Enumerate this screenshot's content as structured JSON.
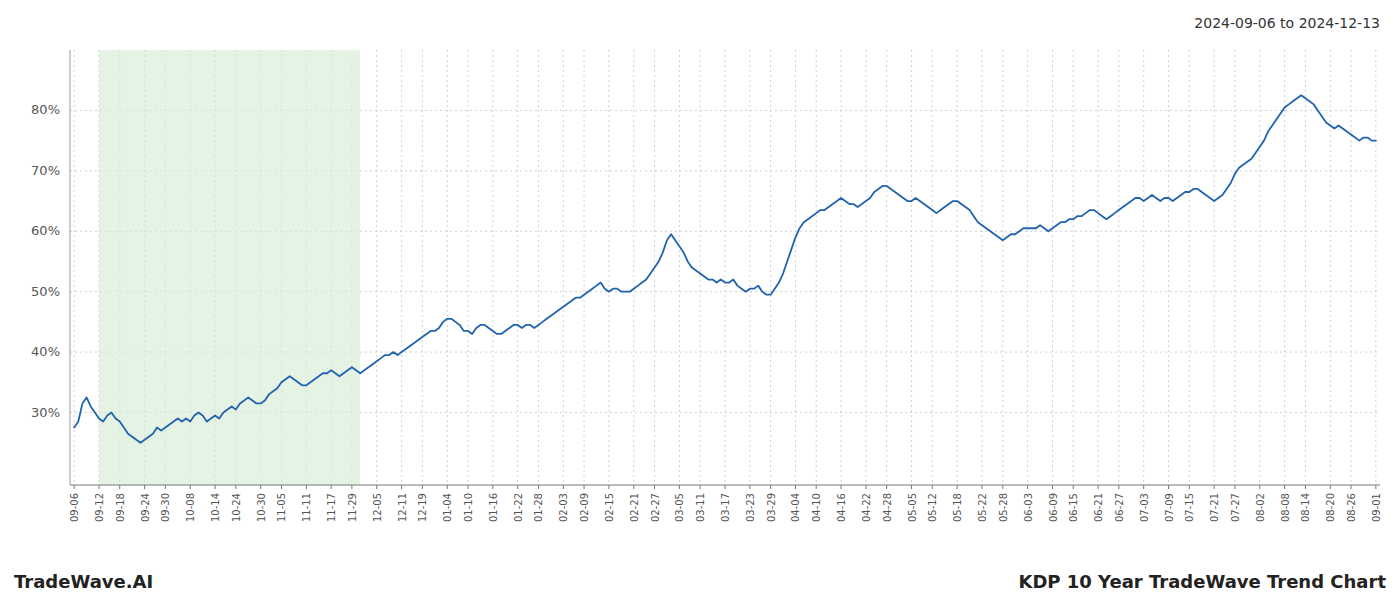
{
  "chart_data": {
    "type": "line",
    "title": "KDP 10 Year TradeWave Trend Chart",
    "subtitle": "2024-09-06 to 2024-12-13",
    "annotations": [
      {
        "text": "TradeWave.AI"
      }
    ],
    "color": "#2163ae",
    "grid": true,
    "ylim": [
      18,
      90
    ],
    "yticks": [
      {
        "value": 30,
        "label": "30%"
      },
      {
        "value": 40,
        "label": "40%"
      },
      {
        "value": 50,
        "label": "50%"
      },
      {
        "value": 60,
        "label": "60%"
      },
      {
        "value": 70,
        "label": "70%"
      },
      {
        "value": 80,
        "label": "80%"
      }
    ],
    "shaded_region": {
      "from": 6,
      "to": 69,
      "color": "#d6ecd6"
    },
    "categories": [
      "09-06",
      null,
      null,
      null,
      null,
      null,
      "09-12",
      null,
      null,
      null,
      null,
      "09-18",
      null,
      null,
      null,
      null,
      null,
      "09-24",
      null,
      null,
      null,
      null,
      "09-30",
      null,
      null,
      null,
      null,
      null,
      "10-08",
      null,
      null,
      null,
      null,
      null,
      "10-14",
      null,
      null,
      null,
      null,
      "10-24",
      null,
      null,
      null,
      null,
      null,
      "10-30",
      null,
      null,
      null,
      null,
      "11-05",
      null,
      null,
      null,
      null,
      null,
      "11-11",
      null,
      null,
      null,
      null,
      null,
      "11-17",
      null,
      null,
      null,
      null,
      "11-29",
      null,
      null,
      null,
      null,
      null,
      "12-05",
      null,
      null,
      null,
      null,
      null,
      "12-11",
      null,
      null,
      null,
      null,
      "12-19",
      null,
      null,
      null,
      null,
      null,
      "01-04",
      null,
      null,
      null,
      null,
      "01-10",
      null,
      null,
      null,
      null,
      null,
      "01-16",
      null,
      null,
      null,
      null,
      null,
      "01-22",
      null,
      null,
      null,
      null,
      "01-28",
      null,
      null,
      null,
      null,
      null,
      "02-03",
      null,
      null,
      null,
      null,
      "02-09",
      null,
      null,
      null,
      null,
      null,
      "02-15",
      null,
      null,
      null,
      null,
      null,
      "02-21",
      null,
      null,
      null,
      null,
      "02-27",
      null,
      null,
      null,
      null,
      null,
      "03-05",
      null,
      null,
      null,
      null,
      "03-11",
      null,
      null,
      null,
      null,
      null,
      "03-17",
      null,
      null,
      null,
      null,
      null,
      "03-23",
      null,
      null,
      null,
      null,
      "03-29",
      null,
      null,
      null,
      null,
      null,
      "04-04",
      null,
      null,
      null,
      null,
      "04-10",
      null,
      null,
      null,
      null,
      null,
      "04-16",
      null,
      null,
      null,
      null,
      null,
      "04-22",
      null,
      null,
      null,
      null,
      "04-28",
      null,
      null,
      null,
      null,
      null,
      "05-05",
      null,
      null,
      null,
      null,
      "05-12",
      null,
      null,
      null,
      null,
      null,
      "05-18",
      null,
      null,
      null,
      null,
      null,
      "05-22",
      null,
      null,
      null,
      null,
      "05-28",
      null,
      null,
      null,
      null,
      null,
      "06-03",
      null,
      null,
      null,
      null,
      null,
      "06-09",
      null,
      null,
      null,
      null,
      "06-15",
      null,
      null,
      null,
      null,
      null,
      "06-21",
      null,
      null,
      null,
      null,
      "06-27",
      null,
      null,
      null,
      null,
      null,
      "07-03",
      null,
      null,
      null,
      null,
      null,
      "07-09",
      null,
      null,
      null,
      null,
      "07-15",
      null,
      null,
      null,
      null,
      null,
      "07-21",
      null,
      null,
      null,
      null,
      "07-27",
      null,
      null,
      null,
      null,
      null,
      "08-02",
      null,
      null,
      null,
      null,
      null,
      "08-08",
      null,
      null,
      null,
      null,
      "08-14",
      null,
      null,
      null,
      null,
      null,
      "08-20",
      null,
      null,
      null,
      null,
      "08-26",
      null,
      null,
      null,
      null,
      null,
      "09-01"
    ],
    "values": [
      27.5,
      28.5,
      31.5,
      32.5,
      31.0,
      30.0,
      29.0,
      28.5,
      29.5,
      30.0,
      29.0,
      28.5,
      27.5,
      26.5,
      26.0,
      25.5,
      25.0,
      25.5,
      26.0,
      26.5,
      27.5,
      27.0,
      27.5,
      28.0,
      28.5,
      29.0,
      28.5,
      29.0,
      28.5,
      29.5,
      30.0,
      29.5,
      28.5,
      29.0,
      29.5,
      29.0,
      30.0,
      30.5,
      31.0,
      30.5,
      31.5,
      32.0,
      32.5,
      32.0,
      31.5,
      31.5,
      32.0,
      33.0,
      33.5,
      34.0,
      35.0,
      35.5,
      36.0,
      35.5,
      35.0,
      34.5,
      34.5,
      35.0,
      35.5,
      36.0,
      36.5,
      36.5,
      37.0,
      36.5,
      36.0,
      36.5,
      37.0,
      37.5,
      37.0,
      36.5,
      37.0,
      37.5,
      38.0,
      38.5,
      39.0,
      39.5,
      39.5,
      40.0,
      39.5,
      40.0,
      40.5,
      41.0,
      41.5,
      42.0,
      42.5,
      43.0,
      43.5,
      43.5,
      44.0,
      45.0,
      45.5,
      45.5,
      45.0,
      44.5,
      43.5,
      43.5,
      43.0,
      44.0,
      44.5,
      44.5,
      44.0,
      43.5,
      43.0,
      43.0,
      43.5,
      44.0,
      44.5,
      44.5,
      44.0,
      44.5,
      44.5,
      44.0,
      44.5,
      45.0,
      45.5,
      46.0,
      46.5,
      47.0,
      47.5,
      48.0,
      48.5,
      49.0,
      49.0,
      49.5,
      50.0,
      50.5,
      51.0,
      51.5,
      50.5,
      50.0,
      50.5,
      50.5,
      50.0,
      50.0,
      50.0,
      50.5,
      51.0,
      51.5,
      52.0,
      53.0,
      54.0,
      55.0,
      56.5,
      58.5,
      59.5,
      58.5,
      57.5,
      56.5,
      55.0,
      54.0,
      53.5,
      53.0,
      52.5,
      52.0,
      52.0,
      51.5,
      52.0,
      51.5,
      51.5,
      52.0,
      51.0,
      50.5,
      50.0,
      50.5,
      50.5,
      51.0,
      50.0,
      49.5,
      49.5,
      50.5,
      51.5,
      53.0,
      55.0,
      57.0,
      59.0,
      60.5,
      61.5,
      62.0,
      62.5,
      63.0,
      63.5,
      63.5,
      64.0,
      64.5,
      65.0,
      65.5,
      65.0,
      64.5,
      64.5,
      64.0,
      64.5,
      65.0,
      65.5,
      66.5,
      67.0,
      67.5,
      67.5,
      67.0,
      66.5,
      66.0,
      65.5,
      65.0,
      65.0,
      65.5,
      65.0,
      64.5,
      64.0,
      63.5,
      63.0,
      63.5,
      64.0,
      64.5,
      65.0,
      65.0,
      64.5,
      64.0,
      63.5,
      62.5,
      61.5,
      61.0,
      60.5,
      60.0,
      59.5,
      59.0,
      58.5,
      59.0,
      59.5,
      59.5,
      60.0,
      60.5,
      60.5,
      60.5,
      60.5,
      61.0,
      60.5,
      60.0,
      60.5,
      61.0,
      61.5,
      61.5,
      62.0,
      62.0,
      62.5,
      62.5,
      63.0,
      63.5,
      63.5,
      63.0,
      62.5,
      62.0,
      62.5,
      63.0,
      63.5,
      64.0,
      64.5,
      65.0,
      65.5,
      65.5,
      65.0,
      65.5,
      66.0,
      65.5,
      65.0,
      65.5,
      65.5,
      65.0,
      65.5,
      66.0,
      66.5,
      66.5,
      67.0,
      67.0,
      66.5,
      66.0,
      65.5,
      65.0,
      65.5,
      66.0,
      67.0,
      68.0,
      69.5,
      70.5,
      71.0,
      71.5,
      72.0,
      73.0,
      74.0,
      75.0,
      76.5,
      77.5,
      78.5,
      79.5,
      80.5,
      81.0,
      81.5,
      82.0,
      82.5,
      82.0,
      81.5,
      81.0,
      80.0,
      79.0,
      78.0,
      77.5,
      77.0,
      77.5,
      77.0,
      76.5,
      76.0,
      75.5,
      75.0,
      75.5,
      75.5,
      75.0,
      75.0
    ]
  }
}
